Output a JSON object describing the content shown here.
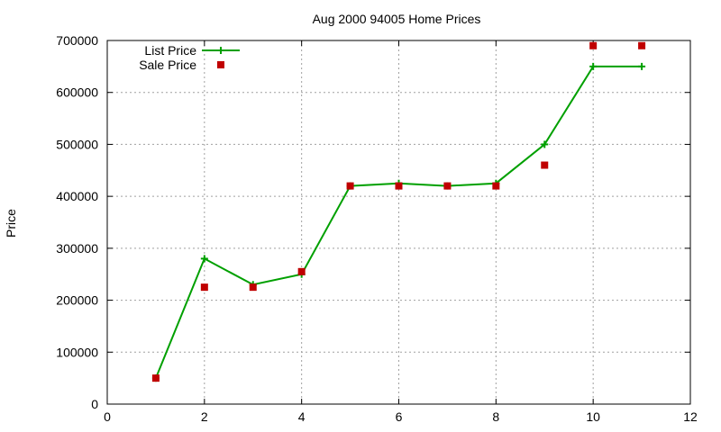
{
  "chart_data": {
    "type": "line",
    "title": "Aug 2000 94005 Home Prices",
    "xlabel": "",
    "ylabel": "Price",
    "xlim": [
      0,
      12
    ],
    "ylim": [
      0,
      700000
    ],
    "xticks": [
      "0",
      "2",
      "4",
      "6",
      "8",
      "10",
      "12"
    ],
    "yticks": [
      "0",
      "100000",
      "200000",
      "300000",
      "400000",
      "500000",
      "600000",
      "700000"
    ],
    "grid": true,
    "legend_position": "top-left",
    "series": [
      {
        "name": "List Price",
        "style": "line-with-plus-markers",
        "color": "#00a000",
        "x": [
          1,
          2,
          3,
          4,
          5,
          6,
          7,
          8,
          9,
          10,
          11
        ],
        "values": [
          50000,
          280000,
          230000,
          250000,
          420000,
          425000,
          420000,
          425000,
          500000,
          650000,
          650000
        ]
      },
      {
        "name": "Sale Price",
        "style": "square-markers",
        "color": "#c00000",
        "x": [
          1,
          2,
          3,
          4,
          5,
          6,
          7,
          8,
          9,
          10,
          11
        ],
        "values": [
          50000,
          225000,
          225000,
          255000,
          420000,
          420000,
          420000,
          420000,
          460000,
          690000,
          690000
        ]
      }
    ]
  }
}
